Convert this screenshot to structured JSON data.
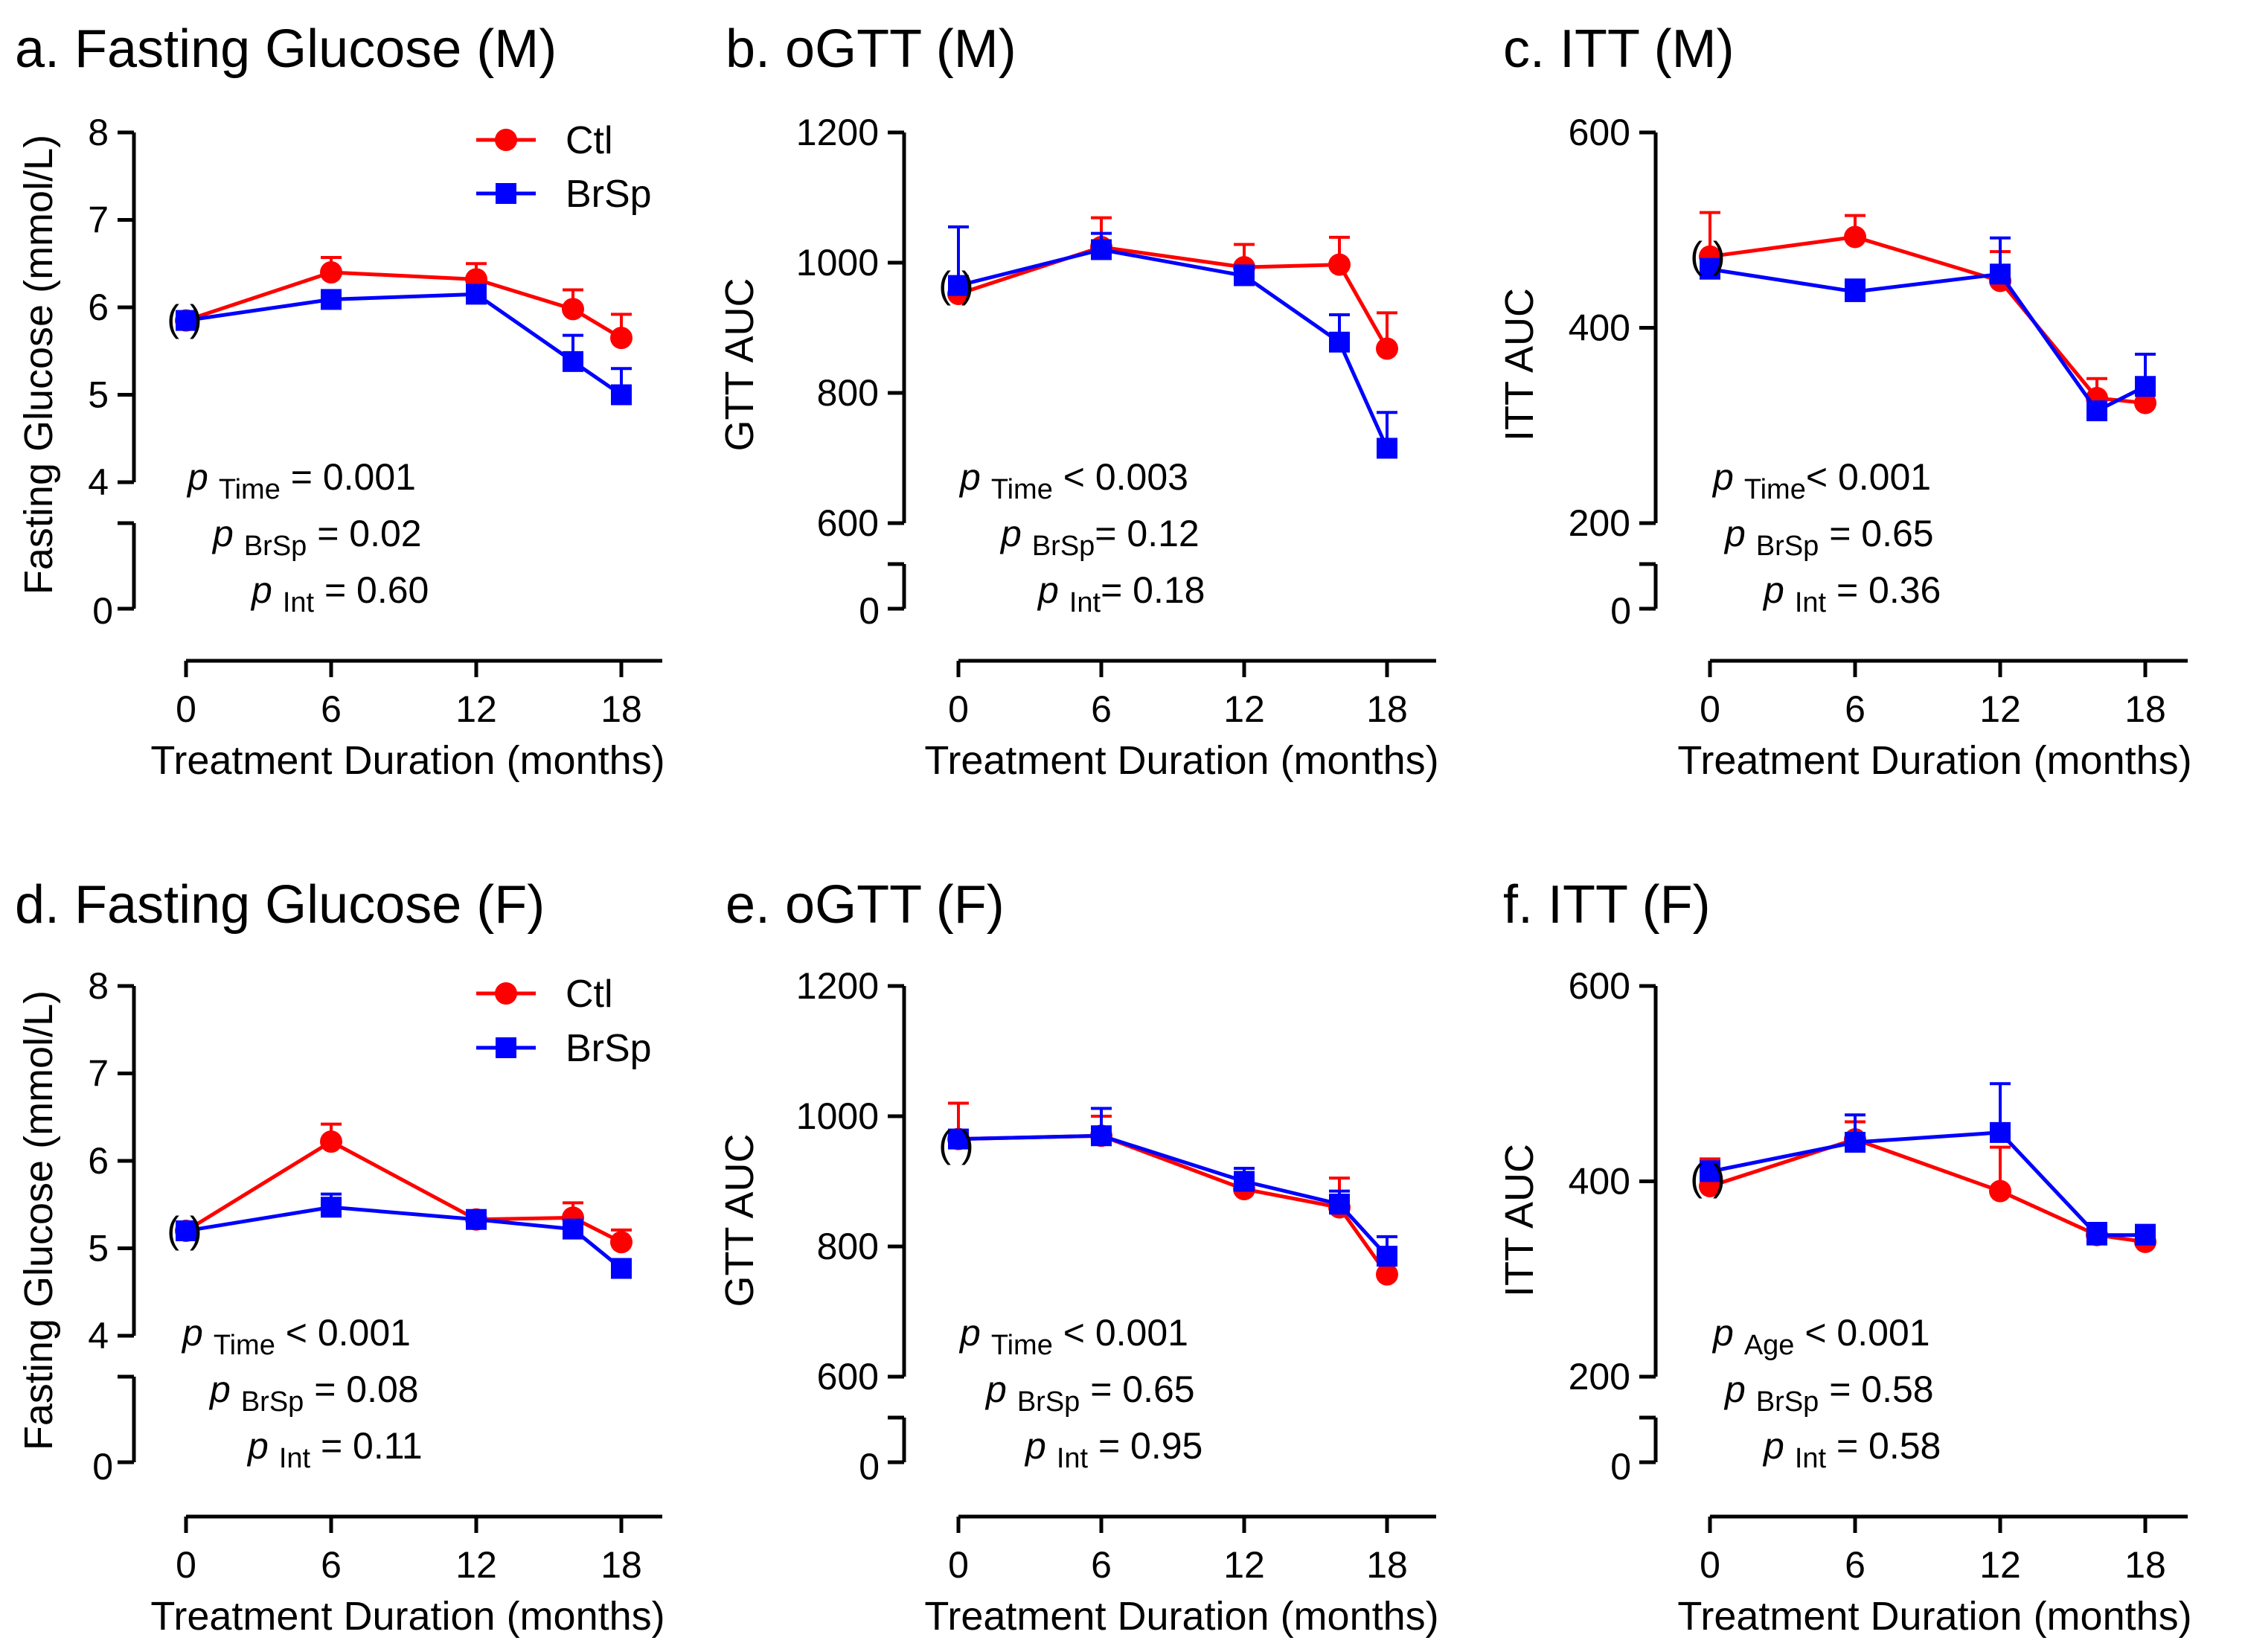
{
  "figure": {
    "background": "#ffffff",
    "colors": {
      "Ctl": "#ff0000",
      "BrSp": "#0000ff"
    }
  },
  "chart_data": [
    {
      "type": "line",
      "title": "a. Fasting Glucose (M)",
      "xlabel": "Treatment Duration (months)",
      "ylabel": "Fasting Glucose (mmol/L)",
      "x": [
        0,
        6,
        12,
        16,
        18
      ],
      "xticks": [
        "0",
        "6",
        "12",
        "18"
      ],
      "xtick_values": [
        0,
        6,
        12,
        18
      ],
      "xlim": [
        0,
        20
      ],
      "ylim": [
        4,
        8
      ],
      "yticks": [
        "4",
        "5",
        "6",
        "7",
        "8"
      ],
      "ytick_values": [
        4,
        5,
        6,
        7,
        8
      ],
      "break_label": "0",
      "paren_label": "( )",
      "legend": {
        "entries": [
          "Ctl",
          "BrSp"
        ],
        "placement": "top-right"
      },
      "series": [
        {
          "name": "Ctl",
          "marker": "circle",
          "values": [
            5.85,
            6.4,
            6.32,
            5.98,
            5.65
          ],
          "errors": [
            0.05,
            0.17,
            0.18,
            0.22,
            0.27
          ]
        },
        {
          "name": "BrSp",
          "marker": "square",
          "values": [
            5.85,
            6.09,
            6.15,
            5.38,
            5.0
          ],
          "errors": [
            0.05,
            0.07,
            0.1,
            0.3,
            0.3
          ]
        }
      ],
      "stats": [
        {
          "p": "p",
          "sub": "Time",
          "text": " = 0.001"
        },
        {
          "p": "p",
          "sub": "BrSp",
          "text": " = 0.02"
        },
        {
          "p": "p",
          "sub": "Int",
          "text": " = 0.60"
        }
      ]
    },
    {
      "type": "line",
      "title": "b. oGTT (M)",
      "xlabel": "Treatment Duration (months)",
      "ylabel": "GTT AUC",
      "x": [
        0,
        6,
        12,
        16,
        18
      ],
      "xticks": [
        "0",
        "6",
        "12",
        "18"
      ],
      "xtick_values": [
        0,
        6,
        12,
        18
      ],
      "xlim": [
        0,
        20
      ],
      "ylim": [
        600,
        1200
      ],
      "yticks": [
        "600",
        "800",
        "1000",
        "1200"
      ],
      "ytick_values": [
        600,
        800,
        1000,
        1200
      ],
      "break_label": "0",
      "paren_label": "( )",
      "series": [
        {
          "name": "Ctl",
          "marker": "circle",
          "values": [
            952,
            1024,
            993,
            997,
            868
          ],
          "errors": [
            10,
            45,
            35,
            42,
            55
          ]
        },
        {
          "name": "BrSp",
          "marker": "square",
          "values": [
            965,
            1020,
            980,
            878,
            715
          ],
          "errors": [
            90,
            25,
            15,
            42,
            55
          ]
        }
      ],
      "stats": [
        {
          "p": "p",
          "sub": "Time",
          "text": " < 0.003"
        },
        {
          "p": "p",
          "sub": "BrSp",
          "text": "= 0.12"
        },
        {
          "p": "p",
          "sub": "Int",
          "text": "= 0.18"
        }
      ]
    },
    {
      "type": "line",
      "title": "c. ITT (M)",
      "xlabel": "Treatment Duration (months)",
      "ylabel": "ITT AUC",
      "x": [
        0,
        6,
        12,
        16,
        18
      ],
      "xticks": [
        "0",
        "6",
        "12",
        "18"
      ],
      "xtick_values": [
        0,
        6,
        12,
        18
      ],
      "xlim": [
        0,
        20
      ],
      "ylim": [
        200,
        600
      ],
      "yticks": [
        "200",
        "400",
        "600"
      ],
      "ytick_values": [
        200,
        400,
        600
      ],
      "break_label": "0",
      "paren_label": "( )",
      "series": [
        {
          "name": "Ctl",
          "marker": "circle",
          "values": [
            473,
            493,
            448,
            328,
            323
          ],
          "errors": [
            45,
            22,
            30,
            20,
            8
          ]
        },
        {
          "name": "BrSp",
          "marker": "square",
          "values": [
            460,
            437,
            455,
            315,
            340
          ],
          "errors": [
            10,
            12,
            37,
            8,
            33
          ]
        }
      ],
      "stats": [
        {
          "p": "p",
          "sub": "Time",
          "text": "< 0.001"
        },
        {
          "p": "p",
          "sub": "BrSp",
          "text": " = 0.65"
        },
        {
          "p": "p",
          "sub": "Int",
          "text": " = 0.36"
        }
      ]
    },
    {
      "type": "line",
      "title": "d. Fasting Glucose (F)",
      "xlabel": "Treatment Duration (months)",
      "ylabel": "Fasting Glucose (mmol/L)",
      "x": [
        0,
        6,
        12,
        16,
        18
      ],
      "xticks": [
        "0",
        "6",
        "12",
        "18"
      ],
      "xtick_values": [
        0,
        6,
        12,
        18
      ],
      "xlim": [
        0,
        20
      ],
      "ylim": [
        4,
        8
      ],
      "yticks": [
        "4",
        "5",
        "6",
        "7",
        "8"
      ],
      "ytick_values": [
        4,
        5,
        6,
        7,
        8
      ],
      "break_label": "0",
      "paren_label": "( )",
      "legend": {
        "entries": [
          "Ctl",
          "BrSp"
        ],
        "placement": "top-right"
      },
      "series": [
        {
          "name": "Ctl",
          "marker": "circle",
          "values": [
            5.2,
            6.22,
            5.33,
            5.35,
            5.07
          ],
          "errors": [
            0.05,
            0.2,
            0.08,
            0.17,
            0.14
          ]
        },
        {
          "name": "BrSp",
          "marker": "square",
          "values": [
            5.2,
            5.47,
            5.33,
            5.22,
            4.77
          ],
          "errors": [
            0.05,
            0.15,
            0.08,
            0.1,
            0.07
          ]
        }
      ],
      "stats": [
        {
          "p": "p",
          "sub": "Time",
          "text": " < 0.001"
        },
        {
          "p": "p",
          "sub": "BrSp",
          "text": " = 0.08"
        },
        {
          "p": "p",
          "sub": "Int",
          "text": " = 0.11"
        }
      ]
    },
    {
      "type": "line",
      "title": "e. oGTT (F)",
      "xlabel": "Treatment Duration (months)",
      "ylabel": "GTT AUC",
      "x": [
        0,
        6,
        12,
        16,
        18
      ],
      "xticks": [
        "0",
        "6",
        "12",
        "18"
      ],
      "xtick_values": [
        0,
        6,
        12,
        18
      ],
      "xlim": [
        0,
        20
      ],
      "ylim": [
        600,
        1200
      ],
      "yticks": [
        "600",
        "800",
        "1000",
        "1200"
      ],
      "ytick_values": [
        600,
        800,
        1000,
        1200
      ],
      "break_label": "0",
      "paren_label": "( )",
      "series": [
        {
          "name": "Ctl",
          "marker": "circle",
          "values": [
            965,
            970,
            888,
            860,
            757
          ],
          "errors": [
            55,
            30,
            15,
            45,
            15
          ]
        },
        {
          "name": "BrSp",
          "marker": "square",
          "values": [
            965,
            970,
            900,
            865,
            785
          ],
          "errors": [
            10,
            42,
            20,
            20,
            30
          ]
        }
      ],
      "stats": [
        {
          "p": "p",
          "sub": "Time",
          "text": " < 0.001"
        },
        {
          "p": "p",
          "sub": "BrSp",
          "text": " = 0.65"
        },
        {
          "p": "p",
          "sub": "Int",
          "text": " = 0.95"
        }
      ]
    },
    {
      "type": "line",
      "title": "f. ITT (F)",
      "xlabel": "Treatment Duration (months)",
      "ylabel": "ITT AUC",
      "x": [
        0,
        6,
        12,
        16,
        18
      ],
      "xticks": [
        "0",
        "6",
        "12",
        "18"
      ],
      "xtick_values": [
        0,
        6,
        12,
        18
      ],
      "xlim": [
        0,
        20
      ],
      "ylim": [
        200,
        600
      ],
      "yticks": [
        "200",
        "400",
        "600"
      ],
      "ytick_values": [
        200,
        400,
        600
      ],
      "break_label": "0",
      "paren_label": "( )",
      "series": [
        {
          "name": "Ctl",
          "marker": "circle",
          "values": [
            395,
            443,
            390,
            345,
            338
          ],
          "errors": [
            28,
            18,
            45,
            12,
            8
          ]
        },
        {
          "name": "BrSp",
          "marker": "square",
          "values": [
            410,
            440,
            450,
            345,
            345
          ],
          "errors": [
            10,
            28,
            50,
            12,
            10
          ]
        }
      ],
      "stats": [
        {
          "p": "p",
          "sub": "Age",
          "text": " < 0.001"
        },
        {
          "p": "p",
          "sub": "BrSp",
          "text": " = 0.58"
        },
        {
          "p": "p",
          "sub": "Int",
          "text": " = 0.58"
        }
      ]
    }
  ]
}
